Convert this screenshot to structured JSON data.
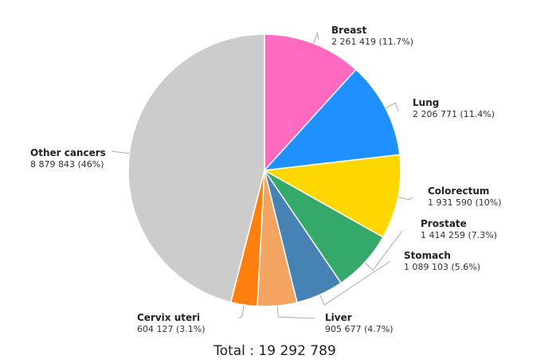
{
  "chart_data": {
    "type": "pie",
    "total_label": "Total : 19 292 789",
    "slices": [
      {
        "name": "Breast",
        "value": 2261419,
        "value_label": "2 261 419 (11.7%)",
        "percent": 11.7,
        "color": "#ff69c0"
      },
      {
        "name": "Lung",
        "value": 2206771,
        "value_label": "2 206 771 (11.4%)",
        "percent": 11.4,
        "color": "#1e90ff"
      },
      {
        "name": "Colorectum",
        "value": 1931590,
        "value_label": "1 931 590 (10%)",
        "percent": 10,
        "color": "#ffd700"
      },
      {
        "name": "Prostate",
        "value": 1414259,
        "value_label": "1 414 259 (7.3%)",
        "percent": 7.3,
        "color": "#35a96a"
      },
      {
        "name": "Stomach",
        "value": 1089103,
        "value_label": "1 089 103 (5.6%)",
        "percent": 5.6,
        "color": "#4682b4"
      },
      {
        "name": "Liver",
        "value": 905677,
        "value_label": "905 677 (4.7%)",
        "percent": 4.7,
        "color": "#f4a460"
      },
      {
        "name": "Cervix uteri",
        "value": 604127,
        "value_label": "604 127 (3.1%)",
        "percent": 3.1,
        "color": "#ff7f0e"
      },
      {
        "name": "Other cancers",
        "value": 8879843,
        "value_label": "8 879 843 (46%)",
        "percent": 46,
        "color": "#cccccc"
      }
    ]
  }
}
